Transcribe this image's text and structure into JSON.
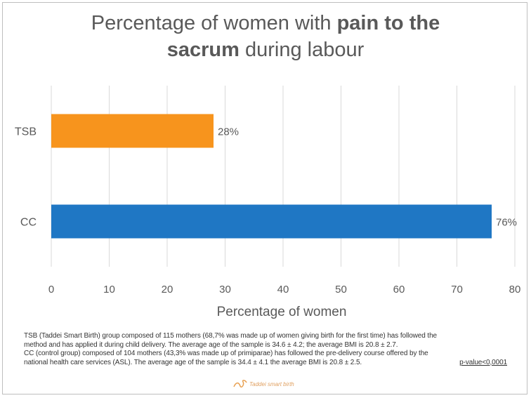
{
  "chart_data": {
    "type": "bar",
    "orientation": "horizontal",
    "title": {
      "part1": "Percentage of women with ",
      "bold1": "pain to the",
      "bold2": "sacrum",
      "part2": " during labour"
    },
    "categories": [
      "TSB",
      "CC"
    ],
    "values": [
      28,
      76
    ],
    "value_labels": [
      "28%",
      "76%"
    ],
    "colors": [
      "#f7941d",
      "#1f77c4"
    ],
    "xlabel": "Percentage of women",
    "xlim": [
      0,
      80
    ],
    "xticks": [
      0,
      10,
      20,
      30,
      40,
      50,
      60,
      70,
      80
    ],
    "grid": true
  },
  "footnote": {
    "line1": "TSB (Taddei Smart Birth) group composed of 115 mothers (68,7% was made up of women giving birth for the first time) has followed the",
    "line2": "method and has applied it during child delivery. The average age of the sample is 34.6 ± 4.2; the average BMI is 20.8 ± 2.7.",
    "line3": "CC (control group) composed of 104 mothers (43,3% was made up of primiparae) has followed the pre-delivery course offered by the",
    "line4": "national health care services (ASL). The average age of the sample is 34.4 ± 4.1 the average BMI is 20.8 ± 2.5.",
    "pvalue": "p-value<0,0001"
  },
  "logo": {
    "text": "Taddei smart birth",
    "color": "#e0a060"
  }
}
